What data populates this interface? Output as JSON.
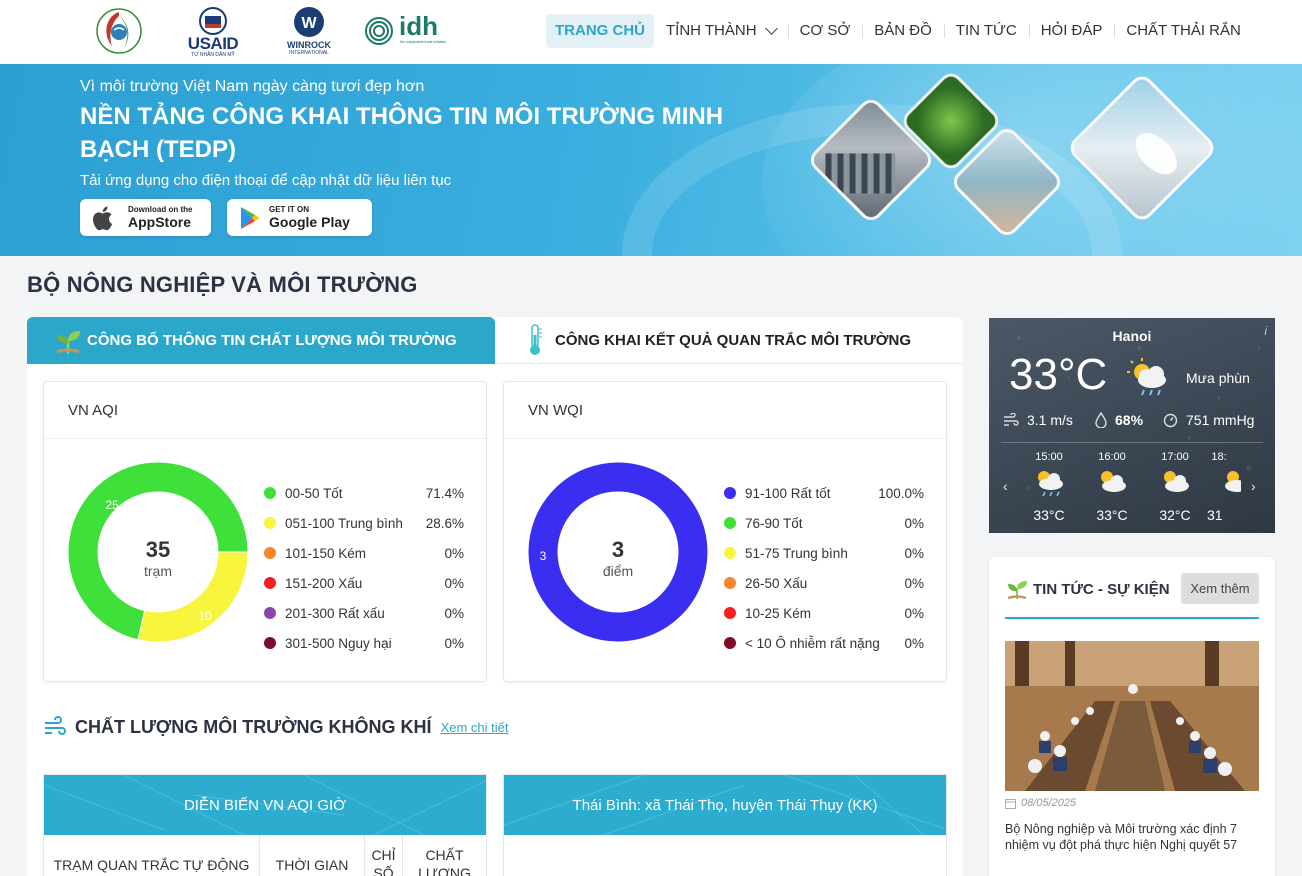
{
  "header": {
    "logos": {
      "usaid": "USAID",
      "usaid_tagline": "TỪ NHÂN DÂN MỸ",
      "winrock": "WINROCK",
      "winrock_sub": "INTERNATIONAL",
      "idh": "idh",
      "idh_sub": "the sustainable trade initiative"
    },
    "nav": [
      {
        "label": "TRANG CHỦ",
        "active": true
      },
      {
        "label": "TỈNH THÀNH",
        "dropdown": true
      },
      {
        "label": "CƠ SỞ"
      },
      {
        "label": "BẢN ĐỒ"
      },
      {
        "label": "TIN TỨC"
      },
      {
        "label": "HỎI ĐÁP"
      },
      {
        "label": "CHẤT THẢI RẮN"
      }
    ]
  },
  "banner": {
    "subtitle": "Vì môi trường Việt Nam ngày càng tươi đẹp hơn",
    "title": "NỀN TẢNG CÔNG KHAI THÔNG TIN MÔI TRƯỜNG MINH BẠCH (TEDP)",
    "app_text": "Tải ứng dụng cho điện thoại để cập nhật dữ liệu liên tục",
    "appstore": {
      "small": "Download on the",
      "big": "AppStore"
    },
    "googleplay": {
      "small": "GET IT ON",
      "big": "Google Play"
    }
  },
  "page_title": "BỘ NÔNG NGHIỆP VÀ MÔI TRƯỜNG",
  "tabs": [
    {
      "label": "CÔNG BỐ THÔNG TIN CHẤT LƯỢNG MÔI TRƯỜNG",
      "active": true,
      "icon": "sprout-icon"
    },
    {
      "label": "CÔNG KHAI KẾT QUẢ QUAN TRẮC MÔI TRƯỜNG",
      "active": false,
      "icon": "thermometer-icon"
    }
  ],
  "aqi": {
    "title": "VN AQI",
    "total": "35",
    "unit": "trạm",
    "legend": [
      {
        "label": "00-50 Tốt",
        "pct": "71.4%",
        "color": "#3fe03a"
      },
      {
        "label": "051-100 Trung bình",
        "pct": "28.6%",
        "color": "#f7f53e"
      },
      {
        "label": "101-150 Kém",
        "pct": "0%",
        "color": "#f7852a"
      },
      {
        "label": "151-200 Xấu",
        "pct": "0%",
        "color": "#f42020"
      },
      {
        "label": "201-300 Rất xấu",
        "pct": "0%",
        "color": "#8e44ad"
      },
      {
        "label": "301-500 Nguy hại",
        "pct": "0%",
        "color": "#7b0d2a"
      }
    ],
    "slices": [
      {
        "value": 25,
        "label": "25",
        "color": "#3fe03a"
      },
      {
        "value": 10,
        "label": "10",
        "color": "#f7f53e"
      }
    ]
  },
  "wqi": {
    "title": "VN WQI",
    "total": "3",
    "unit": "điểm",
    "legend": [
      {
        "label": "91-100 Rất tốt",
        "pct": "100.0%",
        "color": "#3a2ff0"
      },
      {
        "label": "76-90 Tốt",
        "pct": "0%",
        "color": "#3fe03a"
      },
      {
        "label": "51-75 Trung bình",
        "pct": "0%",
        "color": "#f7f53e"
      },
      {
        "label": "26-50 Xấu",
        "pct": "0%",
        "color": "#f7852a"
      },
      {
        "label": "10-25 Kém",
        "pct": "0%",
        "color": "#f42020"
      },
      {
        "label": "< 10 Ô nhiễm rất nặng",
        "pct": "0%",
        "color": "#7b0d2a"
      }
    ],
    "slices": [
      {
        "value": 3,
        "label": "3",
        "color": "#3a2ff0"
      }
    ]
  },
  "air_section": {
    "title": "CHẤT LƯỢNG MÔI TRƯỜNG KHÔNG KHÍ",
    "link": "Xem chi tiết"
  },
  "aqi_hour": {
    "title": "DIỄN BIẾN VN AQI GIỜ",
    "columns": [
      "TRẠM QUAN TRẮC TỰ ĐỘNG",
      "THỜI GIAN",
      "CHỈ SỐ",
      "CHẤT LƯỢNG"
    ]
  },
  "station": {
    "title": "Thái Bình: xã Thái Thọ, huyện Thái Thụy (KK)"
  },
  "weather": {
    "city": "Hanoi",
    "temp": "33°C",
    "desc": "Mưa phùn",
    "wind": "3.1 m/s",
    "humidity": "68%",
    "pressure": "751 mmHg",
    "info": "i",
    "hours": [
      {
        "time": "15:00",
        "temp": "33°C"
      },
      {
        "time": "16:00",
        "temp": "33°C"
      },
      {
        "time": "17:00",
        "temp": "32°C"
      },
      {
        "time": "18:",
        "temp": "31"
      }
    ]
  },
  "news": {
    "title": "TIN TỨC - SỰ KIỆN",
    "more": "Xem thêm",
    "item": {
      "date": "08/05/2025",
      "text": "Bộ Nông nghiệp và Môi trường xác định 7 nhiệm vụ đột phá thực hiện Nghị quyết 57"
    }
  }
}
